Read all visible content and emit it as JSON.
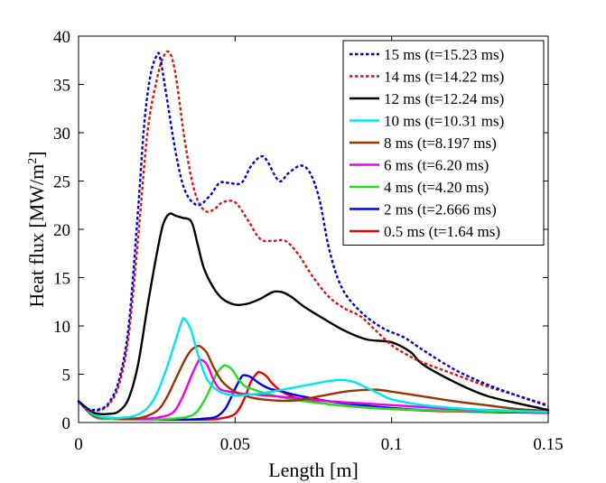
{
  "chart_data": {
    "type": "line",
    "title": "",
    "xlabel": "Length [m]",
    "ylabel_main": "Heat flux [MW/m",
    "ylabel_sup": "2",
    "ylabel_end": "]",
    "xlim": [
      0,
      0.15
    ],
    "ylim": [
      0,
      40
    ],
    "xticks": [
      0,
      0.05,
      0.1,
      0.15
    ],
    "xtick_labels": [
      "0",
      "0.05",
      "0.1",
      "0.15"
    ],
    "yticks": [
      0,
      5,
      10,
      15,
      20,
      25,
      30,
      35,
      40
    ],
    "ytick_labels": [
      "0",
      "5",
      "10",
      "15",
      "20",
      "25",
      "30",
      "35",
      "40"
    ],
    "grid": false,
    "legend_position": "top-right",
    "series": [
      {
        "name": "15 ms (t=15.23 ms)",
        "color": "#0000cc",
        "dash": "dotted",
        "x": [
          0,
          0.003,
          0.007,
          0.01,
          0.013,
          0.016,
          0.019,
          0.021,
          0.023,
          0.025,
          0.026,
          0.028,
          0.031,
          0.034,
          0.038,
          0.042,
          0.045,
          0.048,
          0.052,
          0.055,
          0.058,
          0.06,
          0.064,
          0.067,
          0.071,
          0.074,
          0.077,
          0.08,
          0.084,
          0.09,
          0.097,
          0.104,
          0.11,
          0.12,
          0.13,
          0.14,
          0.15
        ],
        "y": [
          2.2,
          1.4,
          1.4,
          2.2,
          4.5,
          10,
          22,
          31,
          36,
          38,
          37.8,
          34,
          28,
          24,
          22.5,
          23.5,
          24.8,
          24.8,
          24.8,
          26.5,
          27.5,
          27.2,
          25,
          25.8,
          26.6,
          25.8,
          23,
          18,
          14,
          11.5,
          9.8,
          8.8,
          7.5,
          5.5,
          4,
          2.8,
          1.7
        ]
      },
      {
        "name": "14 ms (t=14.22 ms)",
        "color": "#dd1111",
        "dash": "dotted",
        "x": [
          0,
          0.003,
          0.007,
          0.01,
          0.013,
          0.016,
          0.019,
          0.022,
          0.025,
          0.027,
          0.029,
          0.031,
          0.034,
          0.037,
          0.04,
          0.043,
          0.046,
          0.05,
          0.054,
          0.058,
          0.062,
          0.066,
          0.07,
          0.075,
          0.08,
          0.085,
          0.09,
          0.095,
          0.1,
          0.105,
          0.11,
          0.12,
          0.13,
          0.14,
          0.15
        ],
        "y": [
          2.2,
          1.3,
          1.3,
          2,
          4,
          9,
          19,
          30,
          35.5,
          37.8,
          38.3,
          36,
          29,
          24,
          22,
          22,
          22.8,
          22.8,
          21,
          19,
          18.8,
          18.8,
          17.5,
          15,
          13,
          11.8,
          11,
          9.5,
          8,
          7,
          6.2,
          5,
          3.8,
          2.8,
          1.8
        ]
      },
      {
        "name": "12 ms (t=12.24 ms)",
        "color": "#000000",
        "dash": "solid",
        "x": [
          0,
          0.005,
          0.01,
          0.013,
          0.016,
          0.019,
          0.022,
          0.025,
          0.027,
          0.029,
          0.031,
          0.033,
          0.036,
          0.038,
          0.04,
          0.043,
          0.046,
          0.05,
          0.054,
          0.058,
          0.062,
          0.065,
          0.068,
          0.072,
          0.078,
          0.085,
          0.092,
          0.1,
          0.106,
          0.11,
          0.12,
          0.13,
          0.14,
          0.15
        ],
        "y": [
          2.2,
          1.0,
          0.9,
          1.2,
          2.5,
          6,
          12,
          17.5,
          20.5,
          21.6,
          21.4,
          21.2,
          20.8,
          18.5,
          16,
          14,
          12.8,
          12.2,
          12.3,
          12.8,
          13.5,
          13.5,
          13,
          12,
          10.8,
          9.5,
          8.6,
          8.3,
          7.3,
          6,
          4.2,
          2.8,
          2,
          1.3
        ]
      },
      {
        "name": "10 ms (t=10.31 ms)",
        "color": "#00e5ee",
        "dash": "solid",
        "x": [
          0,
          0.005,
          0.01,
          0.014,
          0.018,
          0.022,
          0.025,
          0.028,
          0.031,
          0.033,
          0.034,
          0.036,
          0.038,
          0.041,
          0.045,
          0.05,
          0.055,
          0.06,
          0.065,
          0.07,
          0.075,
          0.08,
          0.084,
          0.088,
          0.092,
          0.096,
          0.1,
          0.11,
          0.12,
          0.13,
          0.14,
          0.15
        ],
        "y": [
          2.2,
          0.8,
          0.5,
          0.5,
          0.7,
          1.5,
          3,
          5.5,
          8.5,
          10.5,
          10.7,
          9.5,
          7.2,
          4.5,
          3.2,
          2.8,
          2.9,
          3.1,
          3.4,
          3.7,
          4.0,
          4.3,
          4.4,
          4.2,
          3.6,
          3.0,
          2.4,
          1.8,
          1.5,
          1.3,
          1.2,
          1.1
        ]
      },
      {
        "name": "8 ms (t=8.197 ms)",
        "color": "#993300",
        "dash": "solid",
        "x": [
          0,
          0.005,
          0.01,
          0.015,
          0.02,
          0.025,
          0.028,
          0.031,
          0.034,
          0.036,
          0.038,
          0.039,
          0.041,
          0.043,
          0.046,
          0.05,
          0.055,
          0.06,
          0.065,
          0.07,
          0.075,
          0.08,
          0.085,
          0.09,
          0.095,
          0.1,
          0.11,
          0.12,
          0.13,
          0.14,
          0.15
        ],
        "y": [
          2.2,
          0.7,
          0.5,
          0.4,
          0.5,
          1.2,
          2.5,
          4.5,
          6.5,
          7.5,
          7.9,
          7.85,
          7.2,
          5.8,
          4.2,
          3.2,
          2.6,
          2.35,
          2.25,
          2.3,
          2.6,
          2.9,
          3.2,
          3.35,
          3.4,
          3.2,
          2.7,
          2.2,
          1.8,
          1.4,
          1.2
        ]
      },
      {
        "name": "6 ms (t=6.20 ms)",
        "color": "#ee00ee",
        "dash": "solid",
        "x": [
          0,
          0.005,
          0.01,
          0.015,
          0.02,
          0.025,
          0.03,
          0.033,
          0.036,
          0.038,
          0.039,
          0.041,
          0.043,
          0.045,
          0.048,
          0.052,
          0.056,
          0.06,
          0.07,
          0.08,
          0.09,
          0.1,
          0.11,
          0.12,
          0.13,
          0.14,
          0.15
        ],
        "y": [
          2.2,
          0.7,
          0.5,
          0.4,
          0.4,
          0.5,
          1.0,
          2.5,
          4.8,
          6.2,
          6.5,
          6.0,
          4.5,
          3.5,
          3.2,
          3.0,
          2.9,
          2.8,
          2.5,
          2.2,
          2.0,
          1.8,
          1.6,
          1.4,
          1.3,
          1.2,
          1.1
        ]
      },
      {
        "name": "4 ms (t=4.20 ms)",
        "color": "#22dd22",
        "dash": "solid",
        "x": [
          0,
          0.005,
          0.01,
          0.015,
          0.02,
          0.025,
          0.03,
          0.035,
          0.038,
          0.041,
          0.044,
          0.046,
          0.047,
          0.049,
          0.051,
          0.053,
          0.056,
          0.06,
          0.065,
          0.07,
          0.08,
          0.09,
          0.1,
          0.11,
          0.12,
          0.13,
          0.14,
          0.15
        ],
        "y": [
          2.2,
          0.6,
          0.4,
          0.3,
          0.3,
          0.3,
          0.4,
          0.6,
          1.2,
          2.8,
          5.0,
          5.8,
          5.9,
          5.5,
          4.5,
          3.8,
          3.4,
          3.0,
          2.6,
          2.3,
          1.9,
          1.6,
          1.4,
          1.3,
          1.2,
          1.15,
          1.1,
          1.05
        ]
      },
      {
        "name": "2 ms (t=2.666 ms)",
        "color": "#0000ee",
        "dash": "solid",
        "x": [
          0,
          0.005,
          0.01,
          0.02,
          0.03,
          0.035,
          0.04,
          0.044,
          0.047,
          0.05,
          0.052,
          0.053,
          0.055,
          0.058,
          0.061,
          0.065,
          0.07,
          0.08,
          0.09,
          0.1,
          0.11,
          0.12,
          0.13,
          0.14,
          0.15
        ],
        "y": [
          2.2,
          0.6,
          0.4,
          0.3,
          0.3,
          0.3,
          0.4,
          0.6,
          1.5,
          3.5,
          4.7,
          4.9,
          4.7,
          4.0,
          3.5,
          3.2,
          2.8,
          2.2,
          1.8,
          1.5,
          1.3,
          1.2,
          1.1,
          1.05,
          1.0
        ]
      },
      {
        "name": "0.5 ms (t=1.64 ms)",
        "color": "#ee0000",
        "dash": "solid",
        "x": [
          0,
          0.005,
          0.01,
          0.02,
          0.03,
          0.04,
          0.045,
          0.05,
          0.053,
          0.055,
          0.057,
          0.058,
          0.06,
          0.062,
          0.065,
          0.07,
          0.08,
          0.09,
          0.1,
          0.11,
          0.12,
          0.13,
          0.14,
          0.15
        ],
        "y": [
          2.2,
          0.6,
          0.4,
          0.3,
          0.3,
          0.3,
          0.4,
          0.9,
          2.5,
          4.2,
          5.1,
          5.2,
          4.8,
          4.0,
          3.2,
          2.5,
          1.9,
          1.6,
          1.4,
          1.25,
          1.15,
          1.1,
          1.05,
          1.0
        ]
      }
    ]
  }
}
